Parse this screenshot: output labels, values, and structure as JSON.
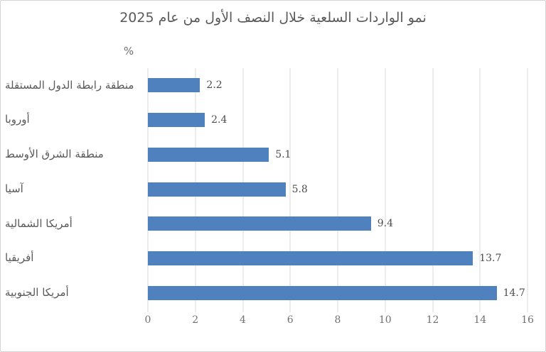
{
  "chart": {
    "title": "نمو الواردات السلعية خلال النصف الأول من عام 2025",
    "unit_label": "%"
  },
  "chart_data": {
    "type": "bar",
    "orientation": "horizontal",
    "title": "نمو الواردات السلعية خلال النصف الأول من عام 2025",
    "categories": [
      "منطقة رابطة الدول المستقلة",
      "أوروبا",
      "منطقة الشرق الأوسط",
      "آسيا",
      "أمريكا الشمالية",
      "أفريقيا",
      "أمريكا الجنوبية"
    ],
    "values": [
      2.2,
      2.4,
      5.1,
      5.8,
      9.4,
      13.7,
      14.7
    ],
    "data_labels": [
      "2.2",
      "2.4",
      "5.1",
      "5.8",
      "9.4",
      "13.7",
      "14.7"
    ],
    "xlabel": "",
    "ylabel": "%",
    "xlim": [
      0,
      16
    ],
    "xticks": [
      0,
      2,
      4,
      6,
      8,
      10,
      12,
      14,
      16
    ],
    "grid": true,
    "legend": "none",
    "bar_color": "#4e81bd",
    "gridline_color": "#d9d9d9"
  }
}
